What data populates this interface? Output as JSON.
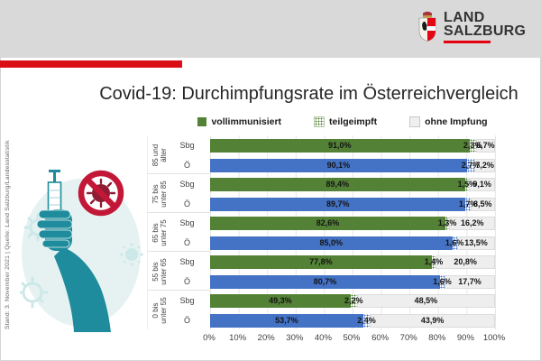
{
  "header": {
    "logo_line1": "LAND",
    "logo_line2": "SALZBURG"
  },
  "title": "Covid-19: Durchimpfungsrate im Österreichvergleich",
  "legend": {
    "items": [
      {
        "label": "vollimmunisiert"
      },
      {
        "label": "teilgeimpft"
      },
      {
        "label": "ohne Impfung"
      }
    ]
  },
  "caption": "Stand: 3. November 2021 | Quelle: Land Salzburg/Landesstatistik",
  "colors": {
    "salzburg_green": "#538135",
    "austria_blue": "#4472c4",
    "ohne_impfung_fill": "#eeeeee",
    "ohne_impfung_border": "#dcdcdc",
    "header_gray": "#d9d9d9",
    "accent_red": "#da0f16",
    "logo_red": "#e3000f",
    "illustration_teal": "#1e8c9c",
    "illustration_teal_light": "#e6f2f2",
    "sign_red": "#c21737",
    "virus_dark_red": "#8e1d34"
  },
  "chart_data": {
    "type": "bar",
    "stacked": true,
    "orientation": "horizontal",
    "title": "Covid-19: Durchimpfungsrate im Österreichvergleich",
    "series_names": [
      "vollimmunisiert",
      "teilgeimpft",
      "ohne Impfung"
    ],
    "x_axis": {
      "min": 0,
      "max": 100,
      "ticks": [
        "0%",
        "10%",
        "20%",
        "30%",
        "40%",
        "50%",
        "60%",
        "70%",
        "80%",
        "90%",
        "100%"
      ]
    },
    "grid": true,
    "groups": [
      {
        "label": "85 und älter",
        "label_lines": [
          "85 und",
          "älter"
        ],
        "rows": [
          {
            "name": "Sbg",
            "values": [
              91.0,
              2.3,
              6.7
            ],
            "labels": [
              "91,0%",
              "2,3%",
              "6,7%"
            ]
          },
          {
            "name": "Ö",
            "values": [
              90.1,
              2.7,
              7.2
            ],
            "labels": [
              "90,1%",
              "2,7%",
              "7,2%"
            ]
          }
        ]
      },
      {
        "label": "75 bis unter 85",
        "label_lines": [
          "75 bis",
          "unter 85"
        ],
        "rows": [
          {
            "name": "Sbg",
            "values": [
              89.4,
              1.5,
              9.1
            ],
            "labels": [
              "89,4%",
              "1,5%",
              "9,1%"
            ]
          },
          {
            "name": "Ö",
            "values": [
              89.7,
              1.7,
              8.5
            ],
            "labels": [
              "89,7%",
              "1,7%",
              "8,5%"
            ]
          }
        ]
      },
      {
        "label": "65 bis unter 75",
        "label_lines": [
          "65 bis",
          "unter 75"
        ],
        "rows": [
          {
            "name": "Sbg",
            "values": [
              82.6,
              1.3,
              16.2
            ],
            "labels": [
              "82,6%",
              "1,3%",
              "16,2%"
            ]
          },
          {
            "name": "Ö",
            "values": [
              85.0,
              1.6,
              13.5
            ],
            "labels": [
              "85,0%",
              "1,6%",
              "13,5%"
            ]
          }
        ]
      },
      {
        "label": "55 bis unter 65",
        "label_lines": [
          "55 bis",
          "unter 65"
        ],
        "rows": [
          {
            "name": "Sbg",
            "values": [
              77.8,
              1.4,
              20.8
            ],
            "labels": [
              "77,8%",
              "1,4%",
              "20,8%"
            ]
          },
          {
            "name": "Ö",
            "values": [
              80.7,
              1.6,
              17.7
            ],
            "labels": [
              "80,7%",
              "1,6%",
              "17,7%"
            ]
          }
        ]
      },
      {
        "label": "0 bis unter 55",
        "label_lines": [
          "0 bis",
          "unter 55"
        ],
        "rows": [
          {
            "name": "Sbg",
            "values": [
              49.3,
              2.2,
              48.5
            ],
            "labels": [
              "49,3%",
              "2,2%",
              "48,5%"
            ]
          },
          {
            "name": "Ö",
            "values": [
              53.7,
              2.4,
              43.9
            ],
            "labels": [
              "53,7%",
              "2,4%",
              "43,9%"
            ]
          }
        ]
      }
    ]
  }
}
